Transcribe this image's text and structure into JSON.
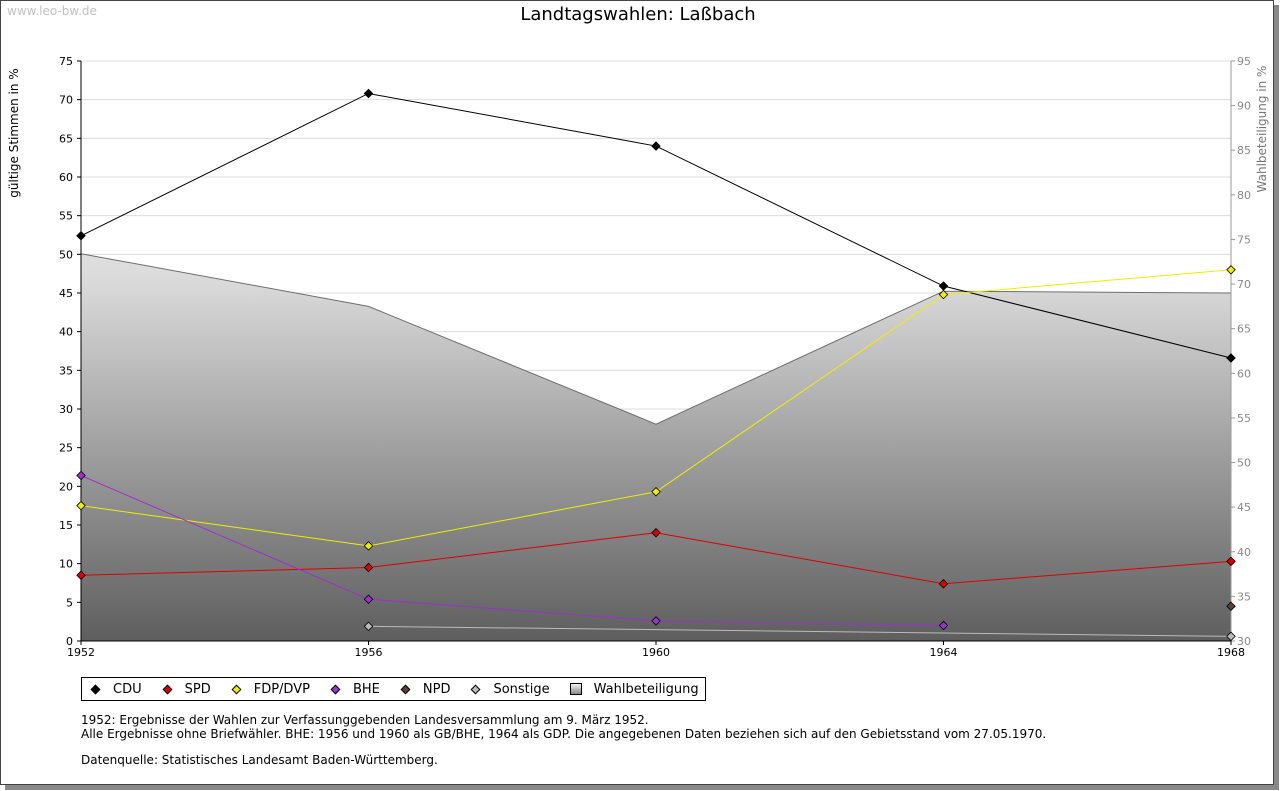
{
  "watermark": "www.leo-bw.de",
  "chart_data": {
    "type": "line",
    "title": "Landtagswahlen: Laßbach",
    "ylabel": "gültige Stimmen in %",
    "y2label": "Wahlbeteiligung in %",
    "categories": [
      "1952",
      "1956",
      "1960",
      "1964",
      "1968"
    ],
    "ylim": [
      0,
      75
    ],
    "yticks": [
      0,
      5,
      10,
      15,
      20,
      25,
      30,
      35,
      40,
      45,
      50,
      55,
      60,
      65,
      70,
      75
    ],
    "y2lim": [
      30,
      95
    ],
    "y2ticks": [
      30,
      35,
      40,
      45,
      50,
      55,
      60,
      65,
      70,
      75,
      80,
      85,
      90,
      95
    ],
    "grid": true,
    "series": [
      {
        "name": "CDU",
        "color": "#000000",
        "values": [
          52.4,
          70.8,
          64.0,
          45.9,
          36.6
        ]
      },
      {
        "name": "SPD",
        "color": "#dd0000",
        "values": [
          8.5,
          9.5,
          14.0,
          7.4,
          10.3
        ]
      },
      {
        "name": "FDP/DVP",
        "color": "#eeee00",
        "values": [
          17.5,
          12.3,
          19.3,
          44.8,
          48.0
        ]
      },
      {
        "name": "BHE",
        "color": "#9933cc",
        "values": [
          21.4,
          5.4,
          2.6,
          2.0,
          null
        ]
      },
      {
        "name": "NPD",
        "color": "#5c4033",
        "values": [
          null,
          null,
          null,
          null,
          4.5
        ]
      },
      {
        "name": "Sonstige",
        "color": "#bbbbbb",
        "values": [
          null,
          1.9,
          null,
          null,
          0.6
        ]
      }
    ],
    "area": {
      "name": "Wahlbeteiligung",
      "axis": "right",
      "values": [
        73.4,
        67.5,
        54.3,
        69.2,
        69.0
      ]
    }
  },
  "legend": [
    {
      "label": "CDU",
      "color": "#000000"
    },
    {
      "label": "SPD",
      "color": "#dd0000"
    },
    {
      "label": "FDP/DVP",
      "color": "#eeee00"
    },
    {
      "label": "BHE",
      "color": "#9933cc"
    },
    {
      "label": "NPD",
      "color": "#5c4033"
    },
    {
      "label": "Sonstige",
      "color": "#bbbbbb"
    },
    {
      "label": "Wahlbeteiligung",
      "color": "#aaaaaa"
    }
  ],
  "notes": {
    "line1": "1952: Ergebnisse der Wahlen zur Verfassunggebenden Landesversammlung am 9. März 1952.",
    "line2": "Alle Ergebnisse ohne Briefwähler. BHE: 1956 und 1960 als GB/BHE, 1964 als GDP. Die angegebenen Daten beziehen sich auf den Gebietsstand vom 27.05.1970.",
    "line3": "Datenquelle: Statistisches Landesamt Baden-Württemberg."
  }
}
